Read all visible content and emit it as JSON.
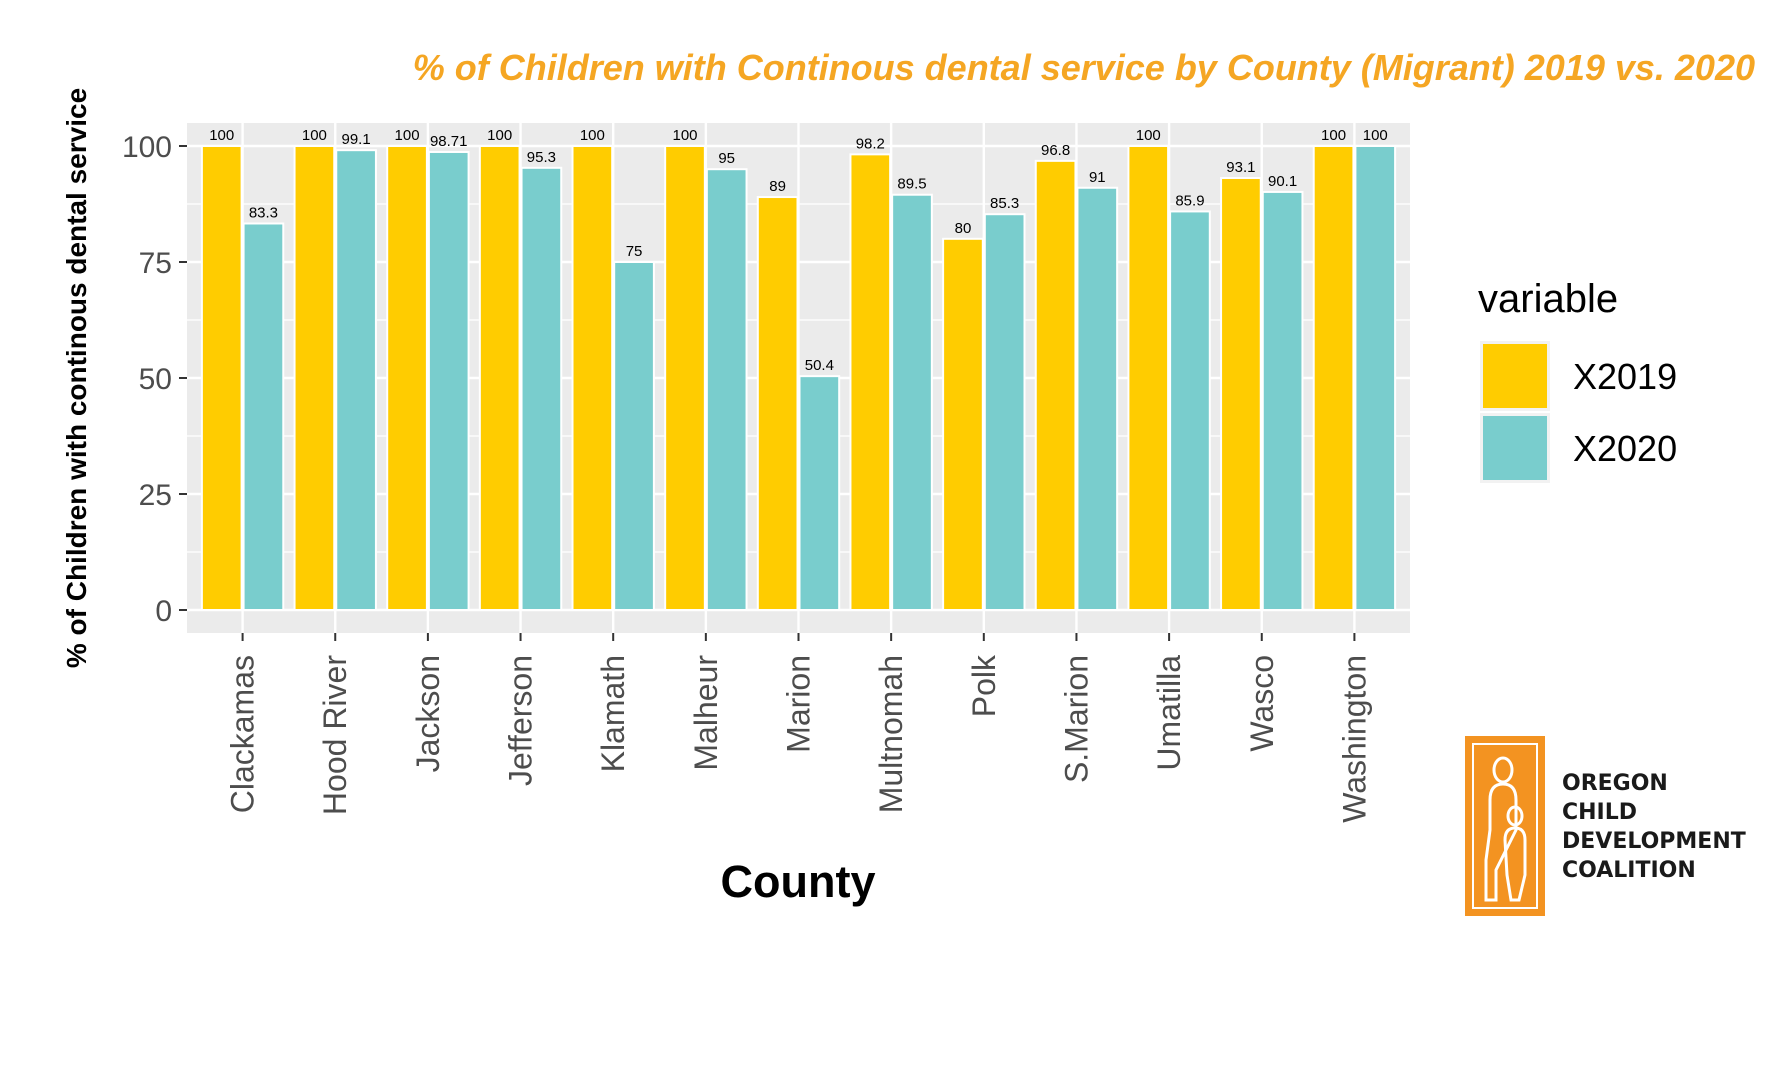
{
  "chart_data": {
    "type": "bar",
    "title": "% of Children with Continous dental service by County (Migrant) 2019 vs. 2020",
    "xlabel": "County",
    "ylabel": "% of Children with continous dental service",
    "ylim": [
      0,
      100
    ],
    "yticks": [
      0,
      25,
      50,
      75,
      100
    ],
    "grid": true,
    "legend_position": "right",
    "legend_title": "variable",
    "categories": [
      "Clackamas",
      "Hood River",
      "Jackson",
      "Jefferson",
      "Klamath",
      "Malheur",
      "Marion",
      "Multnomah",
      "Polk",
      "S.Marion",
      "Umatilla",
      "Wasco",
      "Washington"
    ],
    "series": [
      {
        "name": "X2019",
        "color": "#FFCC00",
        "values": [
          100,
          100,
          100,
          100,
          100,
          100,
          89,
          98.2,
          80,
          96.8,
          100,
          93.1,
          100
        ],
        "labels": [
          "100",
          "100",
          "100",
          "100",
          "100",
          "100",
          "89",
          "98.2",
          "80",
          "96.8",
          "100",
          "93.1",
          "100"
        ]
      },
      {
        "name": "X2020",
        "color": "#79CDCD",
        "values": [
          83.3,
          99.1,
          98.71,
          95.3,
          75,
          95,
          50.4,
          89.5,
          85.3,
          91,
          85.9,
          90.1,
          100
        ],
        "labels": [
          "83.3",
          "99.1",
          "98.71",
          "95.3",
          "75",
          "95",
          "50.4",
          "89.5",
          "85.3",
          "91",
          "85.9",
          "90.1",
          "100"
        ]
      }
    ]
  },
  "colors": {
    "title": "#F5A623",
    "panel_bg": "#EBEBEB",
    "grid": "#FFFFFF",
    "logo_orange": "#F39321"
  },
  "logo": {
    "icon": "parent-child-logo-icon",
    "lines": [
      "OREGON",
      "CHILD",
      "DEVELOPMENT",
      "COALITION"
    ]
  }
}
